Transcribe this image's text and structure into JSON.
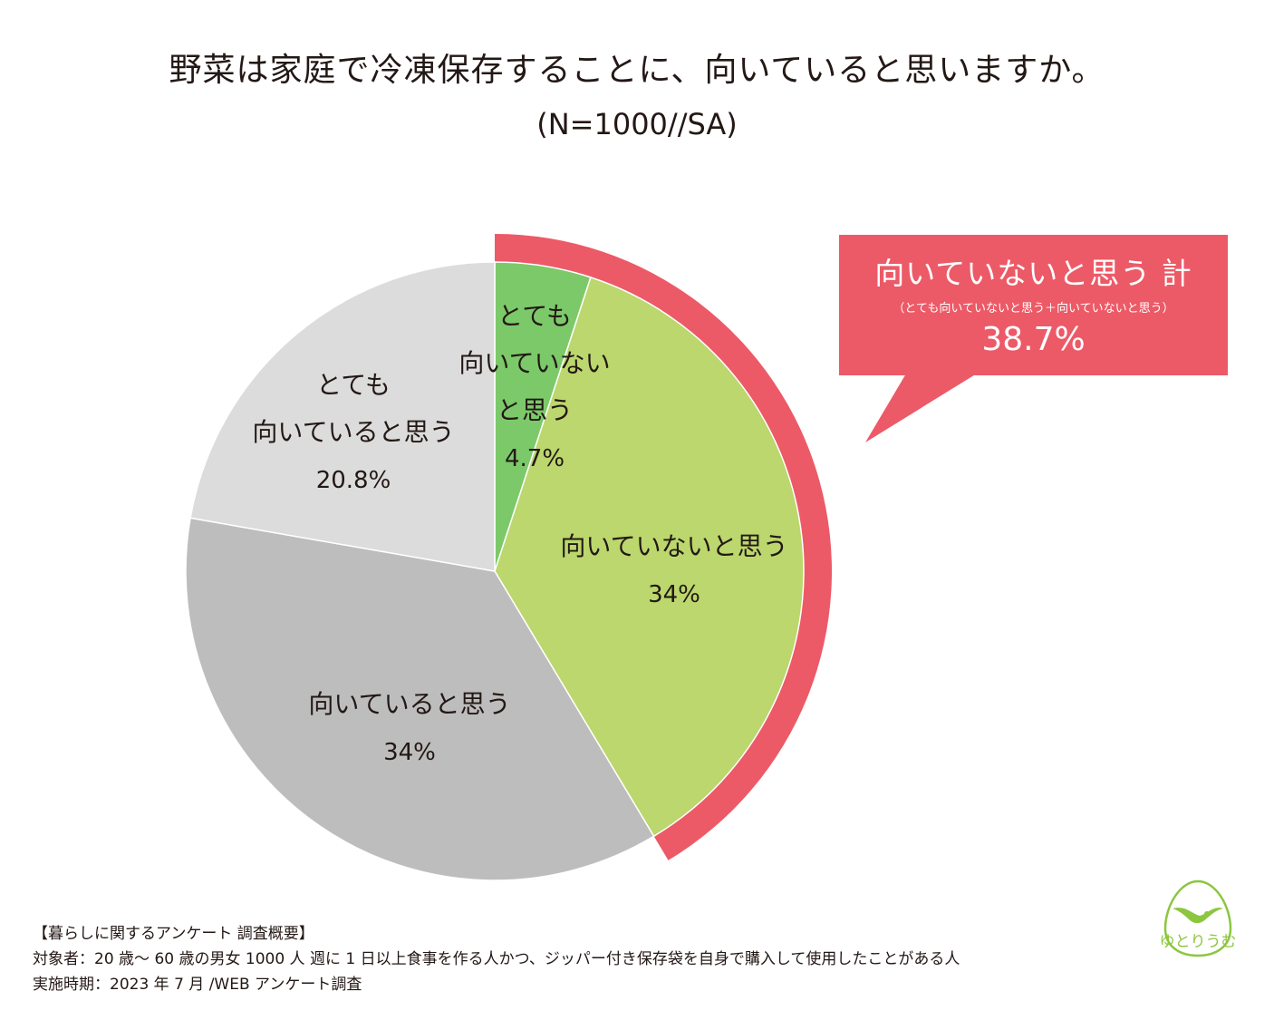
{
  "header": {
    "title": "野菜は家庭で冷凍保存することに、向いていると思いますか。",
    "subtitle": "(N=1000//SA)"
  },
  "chart_data": {
    "type": "pie",
    "title": "野菜は家庭で冷凍保存することに、向いていると思いますか。",
    "subtitle": "(N=1000//SA)",
    "start": "12 o'clock, clockwise",
    "slices": [
      {
        "name": "とても向いていないと思う",
        "label_lines": [
          "とても",
          "向いていない",
          "と思う"
        ],
        "value": 4.7,
        "value_label": "4.7%",
        "color": "#7cc96a"
      },
      {
        "name": "向いていないと思う",
        "label_lines": [
          "向いていないと思う"
        ],
        "value": 34,
        "value_label": "34%",
        "color": "#bbd76d"
      },
      {
        "name": "向いていると思う",
        "label_lines": [
          "向いていると思う"
        ],
        "value": 34,
        "value_label": "34%",
        "color": "#bdbdbd"
      },
      {
        "name": "とても向いていると思う",
        "label_lines": [
          "とても",
          "向いていると思う"
        ],
        "value": 20.8,
        "value_label": "20.8%",
        "color": "#dcdcdc"
      }
    ],
    "highlight": {
      "slices": [
        "とても向いていないと思う",
        "向いていないと思う"
      ],
      "total": 38.7,
      "color": "#ec5a67"
    }
  },
  "callout": {
    "title": "向いていないと思う 計",
    "note": "（とても向いていないと思う＋向いていないと思う）",
    "value": "38.7%",
    "color": "#ec5a67"
  },
  "footer": {
    "heading": "【暮らしに関するアンケート 調査概要】",
    "target": "対象者：20 歳～ 60 歳の男女 1000 人 週に 1 日以上食事を作る人かつ、ジッパー付き保存袋を自身で購入して使用したことがある人",
    "period": "実施時期：2023 年 7 月 /WEB アンケート調査"
  },
  "logo": {
    "text": "ゆとりうむ",
    "color": "#8cc63f"
  }
}
